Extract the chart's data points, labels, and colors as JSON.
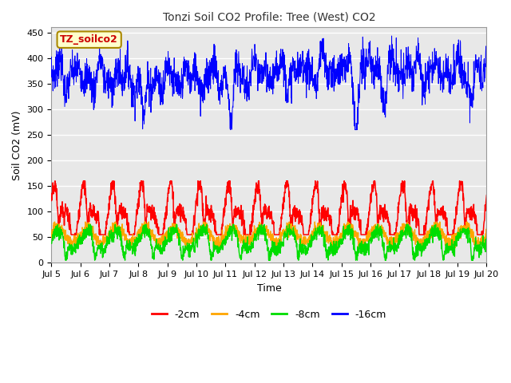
{
  "title": "Tonzi Soil CO2 Profile: Tree (West) CO2",
  "xlabel": "Time",
  "ylabel": "Soil CO2 (mV)",
  "ylim": [
    0,
    460
  ],
  "yticks": [
    0,
    50,
    100,
    150,
    200,
    250,
    300,
    350,
    400,
    450
  ],
  "x_tick_labels": [
    "Jul 5",
    "Jul 6",
    "Jul 7",
    "Jul 8",
    "Jul 9",
    "Jul 10",
    "Jul 11",
    "Jul 12",
    "Jul 13",
    "Jul 14",
    "Jul 15",
    "Jul 16",
    "Jul 17",
    "Jul 18",
    "Jul 19",
    "Jul 20"
  ],
  "legend_labels": [
    "-2cm",
    "-4cm",
    "-8cm",
    "-16cm"
  ],
  "color_2cm": "#ff0000",
  "color_4cm": "#ffa500",
  "color_8cm": "#00dd00",
  "color_16cm": "#0000ff",
  "label_box_facecolor": "#ffffcc",
  "label_box_edgecolor": "#aa8800",
  "label_text": "TZ_soilco2",
  "label_text_color": "#cc0000",
  "fig_facecolor": "#ffffff",
  "plot_facecolor": "#e8e8e8",
  "grid_color": "#ffffff",
  "n_points": 2000
}
